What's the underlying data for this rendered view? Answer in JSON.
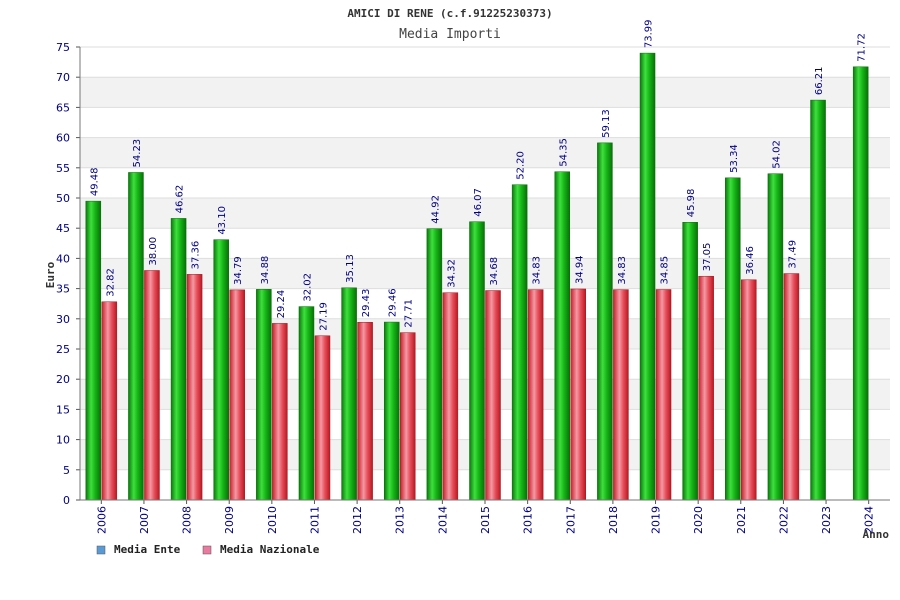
{
  "chart_data": {
    "type": "bar",
    "title": "AMICI DI RENE (c.f.91225230373)",
    "subtitle": "Media Importi",
    "xlabel": "Anno",
    "ylabel": "Euro",
    "ylim": [
      0,
      75
    ],
    "ytick_step": 5,
    "grid": true,
    "legend_position": "bottom-left",
    "categories": [
      "2006",
      "2007",
      "2008",
      "2009",
      "2010",
      "2011",
      "2012",
      "2013",
      "2014",
      "2015",
      "2016",
      "2017",
      "2018",
      "2019",
      "2020",
      "2021",
      "2022",
      "2023",
      "2024"
    ],
    "series": [
      {
        "name": "Media Ente",
        "legend_color": "#5b9bd5",
        "bar_color": "#1fbf1f",
        "values": [
          49.48,
          54.23,
          46.62,
          43.1,
          34.88,
          32.02,
          35.13,
          29.46,
          44.92,
          46.07,
          52.2,
          54.35,
          59.13,
          73.99,
          45.98,
          53.34,
          54.02,
          66.21,
          71.72
        ],
        "labels": [
          "49.48",
          "54.23",
          "46.62",
          "43.10",
          "34.88",
          "32.02",
          "35.13",
          "29.46",
          "44.92",
          "46.07",
          "52.20",
          "54.35",
          "59.13",
          "73.99",
          "45.98",
          "53.34",
          "54.02",
          "66.21",
          "71.72"
        ]
      },
      {
        "name": "Media Nazionale",
        "legend_color": "#e97aa0",
        "bar_color": "#e8303a",
        "values": [
          32.82,
          38.0,
          37.36,
          34.79,
          29.24,
          27.19,
          29.43,
          27.71,
          34.32,
          34.68,
          34.83,
          34.94,
          34.83,
          34.85,
          37.05,
          36.46,
          37.49,
          null,
          null
        ],
        "labels": [
          "32.82",
          "38.00",
          "37.36",
          "34.79",
          "29.24",
          "27.19",
          "29.43",
          "27.71",
          "34.32",
          "34.68",
          "34.83",
          "34.94",
          "34.83",
          "34.85",
          "37.05",
          "36.46",
          "37.49",
          "",
          ""
        ]
      }
    ]
  }
}
